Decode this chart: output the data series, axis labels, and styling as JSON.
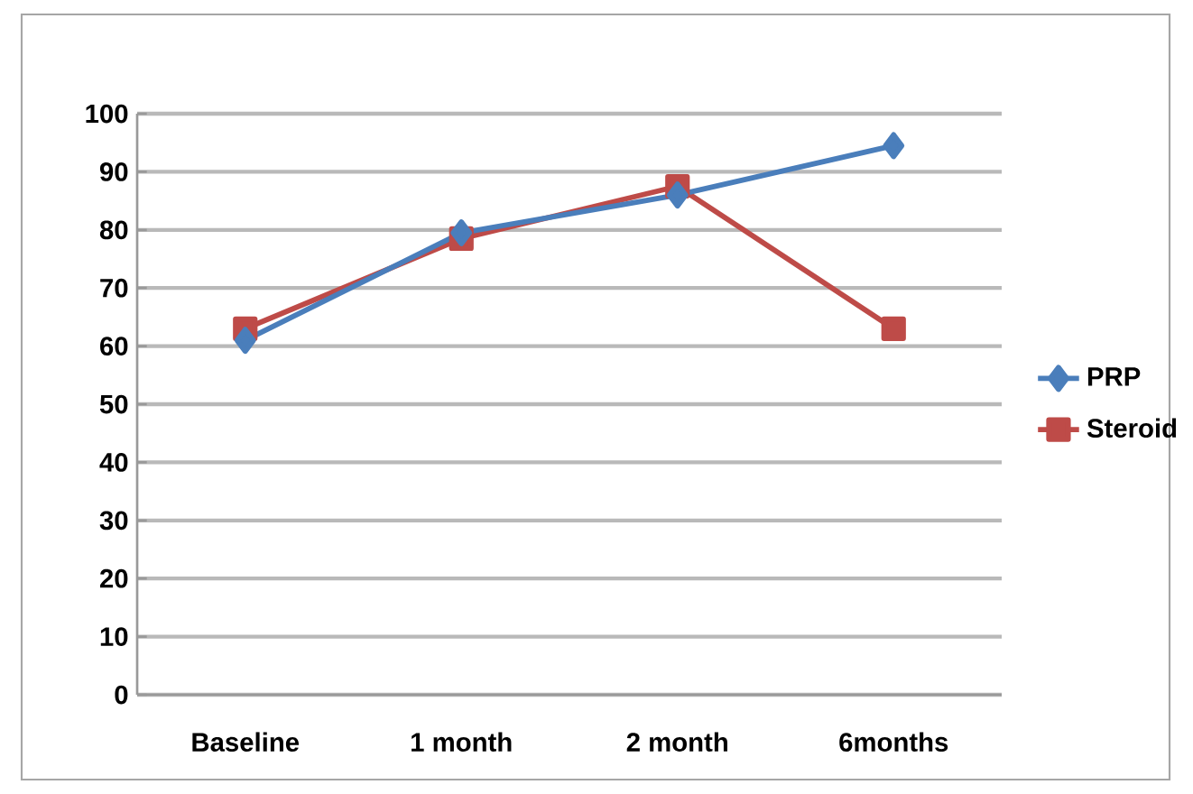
{
  "chart_data": {
    "type": "line",
    "categories": [
      "Baseline",
      "1 month",
      "2 month",
      "6months"
    ],
    "series": [
      {
        "name": "PRP",
        "color": "#4a7ebb",
        "marker": "diamond",
        "values": [
          61,
          79.5,
          86,
          94.5
        ]
      },
      {
        "name": "Steroid",
        "color": "#be4b48",
        "marker": "square",
        "values": [
          63,
          78.5,
          87.5,
          63
        ]
      }
    ],
    "ylim": [
      0,
      100
    ],
    "yticks": [
      0,
      10,
      20,
      30,
      40,
      50,
      60,
      70,
      80,
      90,
      100
    ],
    "grid": "y",
    "legend": "right"
  }
}
